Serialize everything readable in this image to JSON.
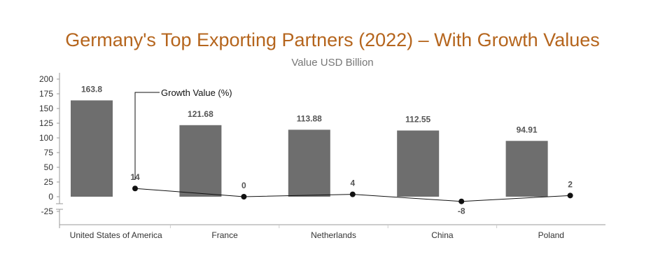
{
  "title": "Germany's Top Exporting Partners (2022) – With Growth Values",
  "subtitle": "Value USD Billion",
  "growth_label": "Growth Value (%)",
  "colors": {
    "title": "#b5651d",
    "bar": "#6e6e6e",
    "line": "#111111"
  },
  "chart_data": {
    "type": "bar",
    "categories": [
      "United States of America",
      "France",
      "Netherlands",
      "China",
      "Poland"
    ],
    "series": [
      {
        "name": "Value USD Billion",
        "type": "bar",
        "values": [
          163.8,
          121.68,
          113.88,
          112.55,
          94.91
        ]
      },
      {
        "name": "Growth Value (%)",
        "type": "line",
        "values": [
          14,
          0,
          4,
          -8,
          2
        ]
      }
    ],
    "value_labels": [
      "163.8",
      "121.68",
      "113.88",
      "112.55",
      "94.91"
    ],
    "growth_labels": [
      "14",
      "0",
      "4",
      "-8",
      "2"
    ],
    "y_ticks": [
      "200",
      "175",
      "150",
      "125",
      "100",
      "75",
      "50",
      "25",
      "0",
      "-25"
    ],
    "ylim": [
      -50,
      200
    ],
    "grid": false,
    "legend": "none"
  }
}
